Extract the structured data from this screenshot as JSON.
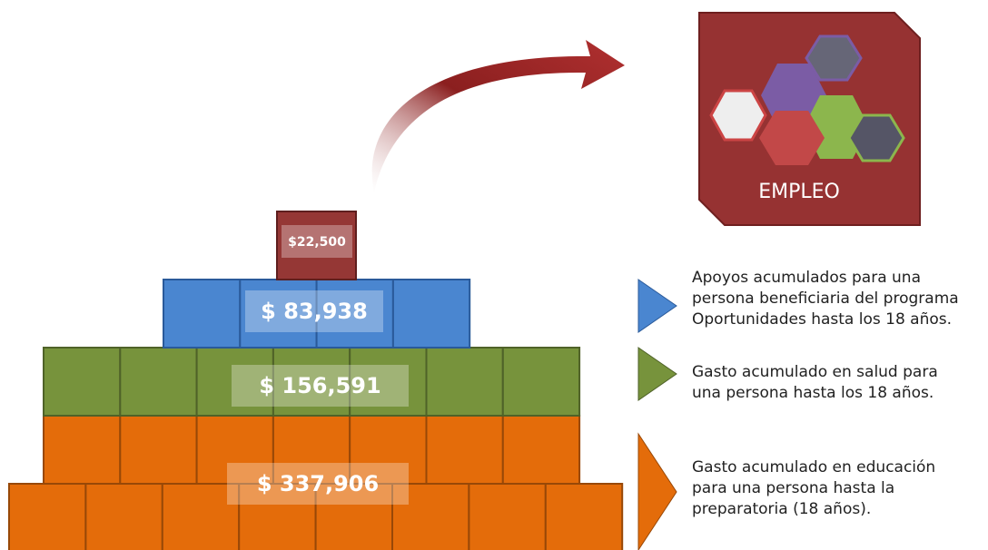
{
  "pyramid": [
    {
      "label": "$22,500"
    },
    {
      "label": "$ 83,938"
    },
    {
      "label": "$ 156,591"
    },
    {
      "label": "$ 337,906"
    }
  ],
  "empleo": {
    "label": "EMPLEO"
  },
  "legend": [
    {
      "lines": [
        "Apoyos acumulados para una",
        "persona beneficiaria del programa",
        "Oportunidades hasta los 18 años."
      ]
    },
    {
      "lines": [
        "Gasto acumulado en salud para",
        "una persona hasta los 18 años."
      ]
    },
    {
      "lines": [
        "Gasto acumulado en educación",
        "para una persona hasta la",
        "preparatoria (18 años)."
      ]
    }
  ]
}
